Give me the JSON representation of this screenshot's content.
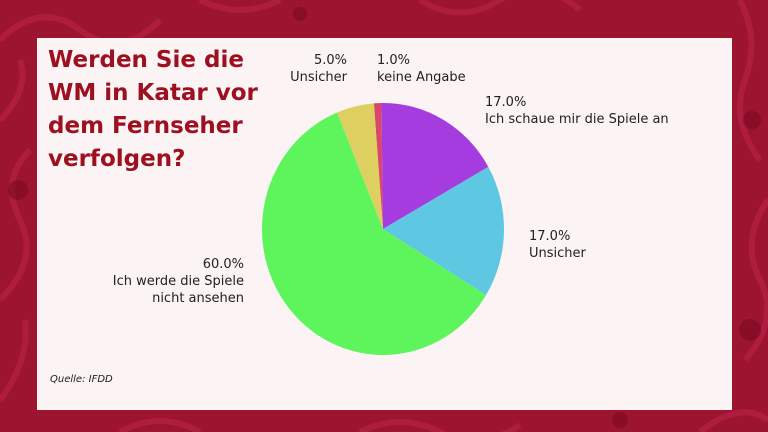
{
  "title": "Werden Sie die WM in Katar vor dem Fernseher verfolgen?",
  "source": "Quelle: IFDD",
  "colors": {
    "background": "#9c1430",
    "panel": "#fbf3f4",
    "title": "#9c1020"
  },
  "chart_data": {
    "type": "pie",
    "title": "Werden Sie die WM in Katar vor dem Fernseher verfolgen?",
    "slices": [
      {
        "label_pct": "1.0%",
        "label_lines": [
          "keine Angabe"
        ],
        "value": 1.0,
        "color": "#d9486a"
      },
      {
        "label_pct": "17.0%",
        "label_lines": [
          "Ich schaue mir die Spiele an"
        ],
        "value": 17.0,
        "color": "#a43ce0"
      },
      {
        "label_pct": "17.0%",
        "label_lines": [
          "Unsicher"
        ],
        "value": 17.0,
        "color": "#5ec8e2"
      },
      {
        "label_pct": "60.0%",
        "label_lines": [
          "Ich werde die Spiele",
          "nicht ansehen"
        ],
        "value": 60.0,
        "color": "#5ef55c"
      },
      {
        "label_pct": "5.0%",
        "label_lines": [
          "Unsicher"
        ],
        "value": 5.0,
        "color": "#ddd060"
      }
    ]
  }
}
